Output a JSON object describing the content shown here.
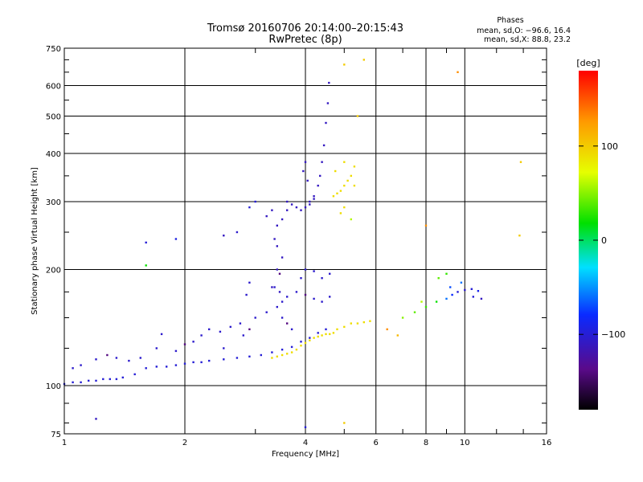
{
  "header": {
    "title_line1": "Tromsø 20160706 20:14:00–20:15:43",
    "title_line2": "RwPretec (8p)",
    "stats_heading": "Phases",
    "stats_o": "mean, sd,O: −96.6, 16.4",
    "stats_x": "mean, sd,X: 88.8, 23.2"
  },
  "chart_data": {
    "type": "scatter",
    "title": "Tromsø 20160706 20:14:00–20:15:43",
    "subtitle": "RwPretec (8p)",
    "xlabel": "Frequency [MHz]",
    "ylabel": "Stationary phase Virtual Height [km]",
    "xscale": "log",
    "yscale": "log",
    "xlim": [
      1,
      16
    ],
    "ylim": [
      75,
      750
    ],
    "xticks": [
      1,
      2,
      4,
      6,
      8,
      10,
      16
    ],
    "xtick_labels": [
      "1",
      "2",
      "4",
      "6",
      "8",
      "10",
      "16"
    ],
    "yticks": [
      75,
      100,
      200,
      300,
      400,
      500,
      600,
      750
    ],
    "ytick_labels": [
      "75",
      "100",
      "200",
      "300",
      "400",
      "500",
      "600",
      "750"
    ],
    "grid": true,
    "colorbar": {
      "label": "[deg]",
      "range": [
        -180,
        180
      ],
      "ticks": [
        100,
        0,
        -100
      ],
      "tick_labels": [
        "100",
        "0",
        "−100"
      ],
      "colormap": "rainbow (black → purple → blue → cyan → green → yellow → red)"
    },
    "series": [
      {
        "id": "E-low-trace",
        "color_phase": -100,
        "points": [
          [
            1.0,
            101
          ],
          [
            1.05,
            102
          ],
          [
            1.1,
            102
          ],
          [
            1.15,
            103
          ],
          [
            1.2,
            103
          ],
          [
            1.25,
            104
          ],
          [
            1.3,
            104
          ],
          [
            1.35,
            104
          ],
          [
            1.4,
            105
          ],
          [
            1.5,
            107
          ],
          [
            1.6,
            111
          ],
          [
            1.7,
            112
          ],
          [
            1.8,
            112
          ],
          [
            1.9,
            113
          ],
          [
            2.0,
            114
          ],
          [
            2.1,
            115
          ],
          [
            2.2,
            115
          ],
          [
            2.3,
            116
          ],
          [
            2.5,
            117
          ],
          [
            2.7,
            118
          ],
          [
            2.9,
            119
          ],
          [
            3.1,
            120
          ],
          [
            3.3,
            122
          ],
          [
            3.5,
            124
          ],
          [
            3.7,
            126
          ],
          [
            3.9,
            130
          ],
          [
            4.1,
            133
          ],
          [
            4.3,
            137
          ],
          [
            4.5,
            140
          ]
        ]
      },
      {
        "id": "lower-scatter",
        "color_phase": -105,
        "points": [
          [
            1.05,
            111
          ],
          [
            1.1,
            113
          ],
          [
            1.2,
            117
          ],
          [
            1.28,
            120
          ],
          [
            1.35,
            118
          ],
          [
            1.45,
            116
          ],
          [
            1.55,
            118
          ],
          [
            1.7,
            125
          ],
          [
            1.75,
            136
          ],
          [
            1.9,
            123
          ],
          [
            2.0,
            128
          ],
          [
            2.1,
            130
          ],
          [
            2.2,
            135
          ],
          [
            2.3,
            140
          ],
          [
            2.45,
            138
          ],
          [
            2.6,
            142
          ],
          [
            2.75,
            145
          ],
          [
            2.9,
            140
          ],
          [
            3.0,
            150
          ],
          [
            3.2,
            155
          ],
          [
            3.4,
            160
          ],
          [
            3.5,
            165
          ],
          [
            3.6,
            170
          ],
          [
            3.8,
            175
          ],
          [
            4.0,
            172
          ],
          [
            4.2,
            168
          ],
          [
            4.4,
            165
          ],
          [
            4.6,
            170
          ],
          [
            2.85,
            172
          ],
          [
            2.9,
            185
          ],
          [
            3.35,
            180
          ],
          [
            3.45,
            195
          ],
          [
            3.9,
            190
          ],
          [
            4.0,
            200
          ],
          [
            4.2,
            198
          ],
          [
            4.4,
            190
          ],
          [
            4.6,
            195
          ],
          [
            3.5,
            150
          ],
          [
            3.6,
            145
          ],
          [
            3.7,
            140
          ],
          [
            2.5,
            125
          ],
          [
            2.8,
            135
          ]
        ]
      },
      {
        "id": "F-trace",
        "color_phase": -110,
        "points": [
          [
            3.4,
            260
          ],
          [
            3.5,
            270
          ],
          [
            3.6,
            285
          ],
          [
            3.7,
            295
          ],
          [
            3.8,
            290
          ],
          [
            3.9,
            285
          ],
          [
            4.0,
            290
          ],
          [
            4.1,
            300
          ],
          [
            4.2,
            310
          ],
          [
            4.3,
            330
          ],
          [
            4.35,
            350
          ],
          [
            4.4,
            380
          ],
          [
            4.45,
            420
          ],
          [
            4.5,
            480
          ],
          [
            4.55,
            540
          ],
          [
            4.58,
            610
          ],
          [
            4.1,
            295
          ],
          [
            4.2,
            305
          ],
          [
            3.6,
            300
          ],
          [
            3.2,
            275
          ],
          [
            3.3,
            285
          ],
          [
            3.35,
            240
          ],
          [
            3.4,
            230
          ],
          [
            3.5,
            215
          ],
          [
            3.4,
            200
          ],
          [
            3.3,
            180
          ],
          [
            3.45,
            175
          ],
          [
            4.0,
            380
          ],
          [
            3.95,
            360
          ],
          [
            4.05,
            340
          ]
        ]
      },
      {
        "id": "X-trace",
        "color_phase": 90,
        "points": [
          [
            3.3,
            118
          ],
          [
            3.4,
            119
          ],
          [
            3.5,
            120
          ],
          [
            3.6,
            121
          ],
          [
            3.7,
            122
          ],
          [
            3.8,
            124
          ],
          [
            3.9,
            127
          ],
          [
            4.0,
            129
          ],
          [
            4.1,
            131
          ],
          [
            4.2,
            133
          ],
          [
            4.3,
            134
          ],
          [
            4.4,
            135
          ],
          [
            4.5,
            136
          ],
          [
            4.6,
            136
          ],
          [
            4.7,
            137
          ],
          [
            4.8,
            140
          ],
          [
            5.0,
            142
          ],
          [
            5.2,
            145
          ],
          [
            5.4,
            145
          ],
          [
            5.6,
            146
          ],
          [
            5.8,
            147
          ],
          [
            4.7,
            310
          ],
          [
            4.8,
            315
          ],
          [
            4.9,
            320
          ],
          [
            5.0,
            330
          ],
          [
            5.1,
            340
          ],
          [
            5.2,
            350
          ],
          [
            5.3,
            330
          ],
          [
            4.75,
            360
          ],
          [
            5.0,
            380
          ],
          [
            5.3,
            370
          ],
          [
            5.0,
            290
          ],
          [
            4.9,
            280
          ]
        ]
      },
      {
        "id": "high-freq-scatter",
        "color_phase": 30,
        "points": [
          [
            7.0,
            150
          ],
          [
            7.5,
            155
          ],
          [
            8.0,
            160
          ],
          [
            8.5,
            165
          ],
          [
            9.0,
            168
          ],
          [
            9.3,
            172
          ],
          [
            9.6,
            175
          ],
          [
            10.0,
            177
          ],
          [
            10.4,
            178
          ],
          [
            10.8,
            176
          ],
          [
            7.8,
            165
          ],
          [
            8.6,
            190
          ],
          [
            9.0,
            195
          ],
          [
            9.8,
            185
          ],
          [
            10.5,
            170
          ],
          [
            11.0,
            168
          ],
          [
            6.4,
            140
          ],
          [
            6.8,
            135
          ],
          [
            9.2,
            180
          ]
        ]
      },
      {
        "id": "isolated-points",
        "color_phase": 0,
        "points": [
          [
            1.6,
            235
          ],
          [
            1.9,
            240
          ],
          [
            2.5,
            245
          ],
          [
            2.7,
            250
          ],
          [
            2.9,
            290
          ],
          [
            3.0,
            300
          ],
          [
            1.6,
            205
          ],
          [
            5.6,
            700
          ],
          [
            5.4,
            500
          ],
          [
            13.8,
            380
          ],
          [
            13.7,
            245
          ],
          [
            9.6,
            650
          ],
          [
            5.0,
            680
          ],
          [
            1.2,
            82
          ],
          [
            5.0,
            80
          ],
          [
            4.0,
            78
          ],
          [
            8.0,
            260
          ],
          [
            5.2,
            270
          ]
        ]
      }
    ]
  }
}
